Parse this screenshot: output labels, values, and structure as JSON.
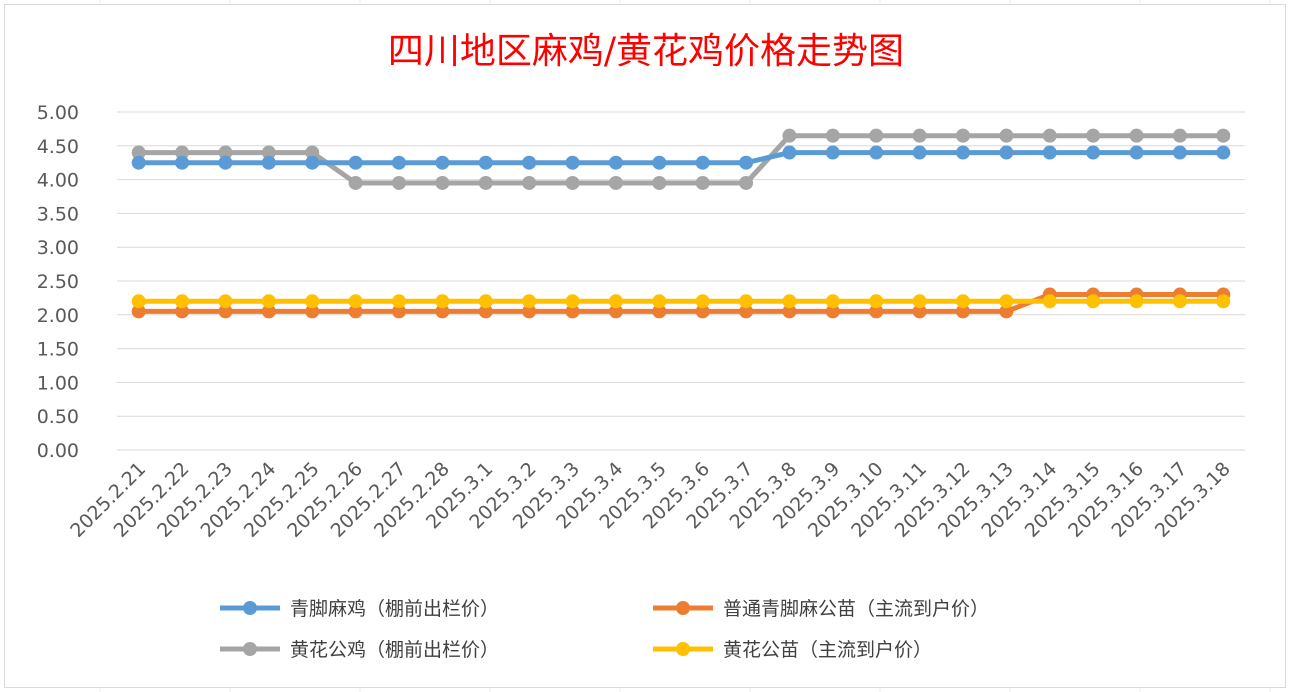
{
  "chart_data": {
    "type": "line",
    "title": "四川地区麻鸡/黄花鸡价格走势图",
    "xlabel": "",
    "ylabel": "",
    "ylim": [
      0,
      5
    ],
    "yticks": [
      "0.00",
      "0.50",
      "1.00",
      "1.50",
      "2.00",
      "2.50",
      "3.00",
      "3.50",
      "4.00",
      "4.50",
      "5.00"
    ],
    "grid": true,
    "legend_position": "bottom",
    "categories": [
      "2025.2.21",
      "2025.2.22",
      "2025.2.23",
      "2025.2.24",
      "2025.2.25",
      "2025.2.26",
      "2025.2.27",
      "2025.2.28",
      "2025.3.1",
      "2025.3.2",
      "2025.3.3",
      "2025.3.4",
      "2025.3.5",
      "2025.3.6",
      "2025.3.7",
      "2025.3.8",
      "2025.3.9",
      "2025.3.10",
      "2025.3.11",
      "2025.3.12",
      "2025.3.13",
      "2025.3.14",
      "2025.3.15",
      "2025.3.16",
      "2025.3.17",
      "2025.3.18"
    ],
    "series": [
      {
        "name": "青脚麻鸡（棚前出栏价）",
        "color": "#5b9bd5",
        "values": [
          4.25,
          4.25,
          4.25,
          4.25,
          4.25,
          4.25,
          4.25,
          4.25,
          4.25,
          4.25,
          4.25,
          4.25,
          4.25,
          4.25,
          4.25,
          4.4,
          4.4,
          4.4,
          4.4,
          4.4,
          4.4,
          4.4,
          4.4,
          4.4,
          4.4,
          4.4
        ]
      },
      {
        "name": "普通青脚麻公苗（主流到户价）",
        "color": "#ed7d31",
        "values": [
          2.05,
          2.05,
          2.05,
          2.05,
          2.05,
          2.05,
          2.05,
          2.05,
          2.05,
          2.05,
          2.05,
          2.05,
          2.05,
          2.05,
          2.05,
          2.05,
          2.05,
          2.05,
          2.05,
          2.05,
          2.05,
          2.3,
          2.3,
          2.3,
          2.3,
          2.3
        ]
      },
      {
        "name": "黄花公鸡（棚前出栏价）",
        "color": "#a5a5a5",
        "values": [
          4.4,
          4.4,
          4.4,
          4.4,
          4.4,
          3.95,
          3.95,
          3.95,
          3.95,
          3.95,
          3.95,
          3.95,
          3.95,
          3.95,
          3.95,
          4.65,
          4.65,
          4.65,
          4.65,
          4.65,
          4.65,
          4.65,
          4.65,
          4.65,
          4.65,
          4.65
        ]
      },
      {
        "name": "黄花公苗（主流到户价）",
        "color": "#ffc000",
        "values": [
          2.2,
          2.2,
          2.2,
          2.2,
          2.2,
          2.2,
          2.2,
          2.2,
          2.2,
          2.2,
          2.2,
          2.2,
          2.2,
          2.2,
          2.2,
          2.2,
          2.2,
          2.2,
          2.2,
          2.2,
          2.2,
          2.2,
          2.2,
          2.2,
          2.2,
          2.2
        ]
      }
    ]
  }
}
